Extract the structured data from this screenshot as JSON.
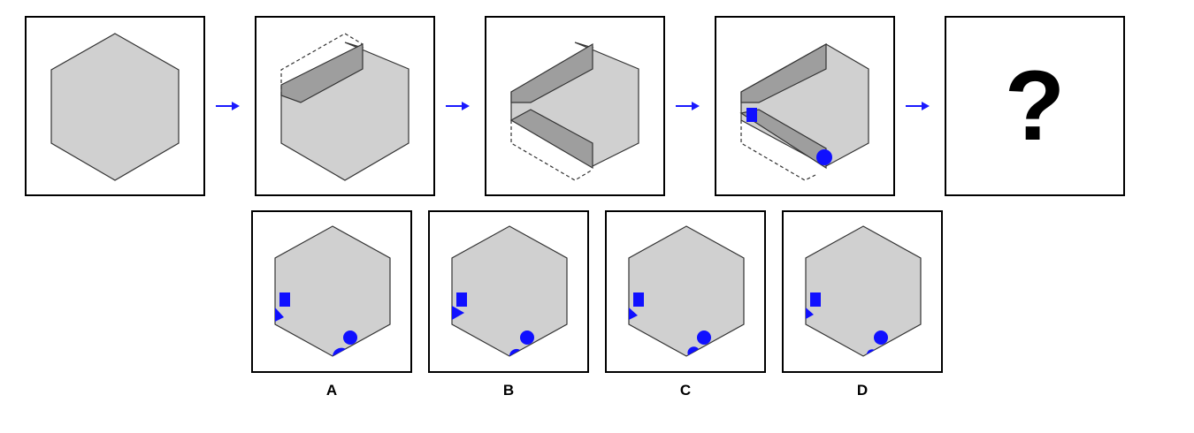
{
  "question_mark": "?",
  "options": [
    {
      "label": "A"
    },
    {
      "label": "B"
    },
    {
      "label": "C"
    },
    {
      "label": "D"
    }
  ],
  "colors": {
    "hexagon_fill": "#d0d0d0",
    "fold_fill": "#9e9e9e",
    "marker": "#1010ff",
    "arrow": "#1a1aff"
  },
  "icons": [
    "right-arrow-icon",
    "square-marker-icon",
    "circle-marker-icon",
    "triangle-marker-icon"
  ]
}
